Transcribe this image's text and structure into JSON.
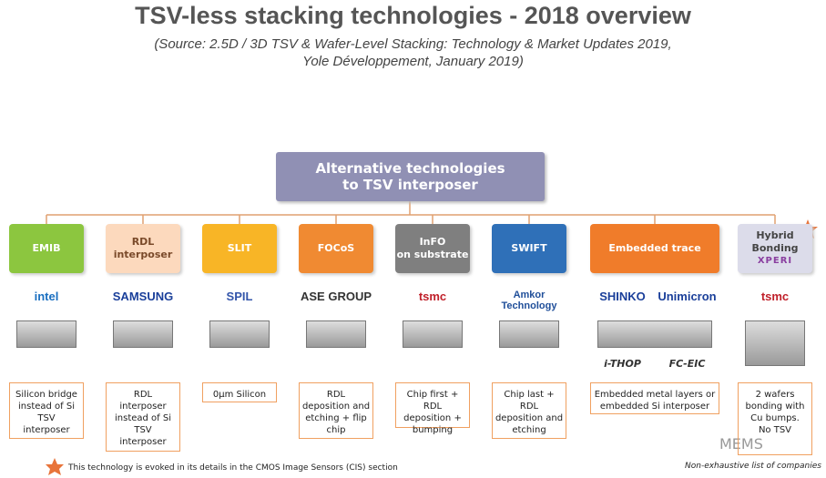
{
  "header": {
    "title": "TSV-less stacking technologies - 2018 overview",
    "source": [
      "(Source: 2.5D / 3D TSV & Wafer-Level Stacking: Technology & Market Updates 2019,",
      "Yole Développement, January 2019)"
    ]
  },
  "root": [
    "Alternative technologies",
    "to TSV interposer"
  ],
  "columns": [
    {
      "label": [
        "EMIB"
      ],
      "logos": [
        "intel"
      ],
      "description": [
        "Silicon bridge",
        "instead of Si",
        "TSV",
        "interposer"
      ]
    },
    {
      "label": [
        "RDL",
        "interposer"
      ],
      "logos": [
        "SAMSUNG"
      ],
      "description": [
        "RDL",
        "interposer",
        "instead of Si",
        "TSV",
        "interposer"
      ]
    },
    {
      "label": [
        "SLIT"
      ],
      "logos": [
        "SPIL"
      ],
      "description": [
        "0µm Silicon"
      ]
    },
    {
      "label": [
        "FOCoS"
      ],
      "logos": [
        "ASE GROUP"
      ],
      "description": [
        "RDL",
        "deposition and",
        "etching + flip",
        "chip"
      ]
    },
    {
      "label": [
        "InFO",
        "on substrate"
      ],
      "logos": [
        "tsmc"
      ],
      "description": [
        "Chip first + RDL",
        "deposition +",
        "bumping"
      ]
    },
    {
      "label": [
        "SWIFT"
      ],
      "logos": [
        "Amkor Technology"
      ],
      "description": [
        "Chip last +",
        "RDL",
        "deposition and",
        "etching"
      ]
    },
    {
      "label": [
        "Embedded trace"
      ],
      "logos": [
        "SHINKO",
        "Unimicron"
      ],
      "captions": [
        "i-THOP",
        "FC-EIC"
      ],
      "description": [
        "Embedded metal layers or",
        "embedded Si interposer"
      ]
    },
    {
      "label": [
        "Hybrid",
        "Bonding"
      ],
      "brand": "XPERI",
      "logos": [
        "tsmc"
      ],
      "description": [
        "2 wafers",
        "bonding with",
        "Cu bumps.",
        "No TSV"
      ]
    }
  ],
  "footnote": "This technology is evoked in its details in the CMOS Image Sensors (CIS) section",
  "note": "Non-exhaustive list of companies",
  "watermark": "MEMS"
}
